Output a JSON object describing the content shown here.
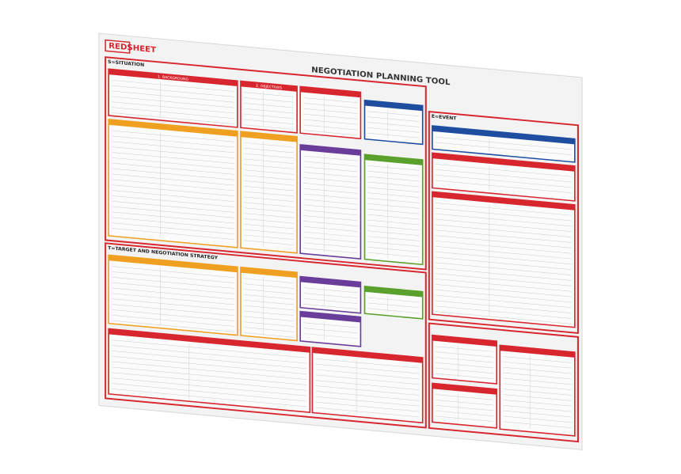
{
  "header": {
    "brand": "REDSHEET",
    "title": "NEGOTIATION PLANNING TOOL"
  },
  "sections": [
    {
      "title": "S=SITUATION",
      "panels": [
        "1. BACKGROUND",
        "2. OBJECTIVES"
      ]
    },
    {
      "title": "T=TARGET AND NEGOTIATION STRATEGY"
    },
    {
      "title": "E=EVENT"
    }
  ]
}
